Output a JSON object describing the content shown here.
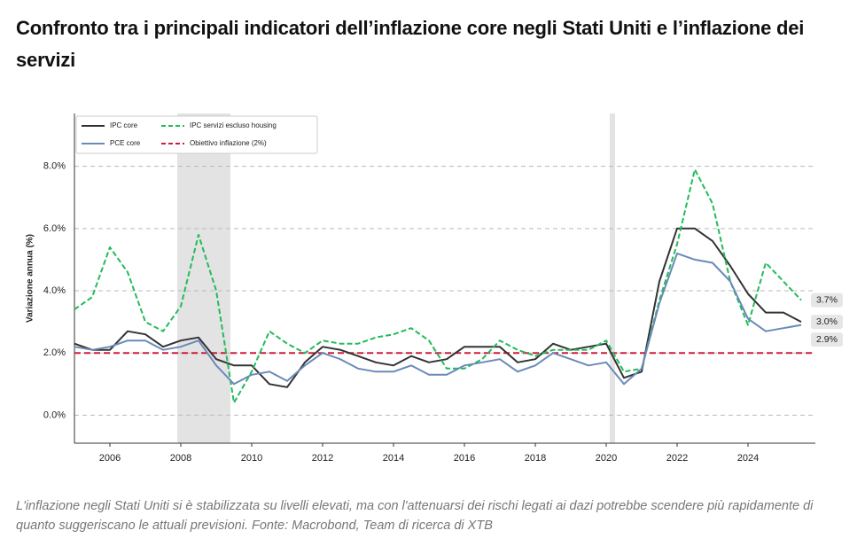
{
  "title": "Confronto tra i principali indicatori dell’inflazione core negli Stati Uniti e l’inflazione dei servizi",
  "caption": "L'inflazione negli Stati Uniti si è stabilizzata su livelli elevati, ma con l'attenuarsi dei rischi legati ai dazi potrebbe scendere più rapidamente di quanto suggeriscano le attuali previsioni. Fonte: Macrobond, Team di ricerca di XTB",
  "chart_data": {
    "type": "line",
    "y_label": "Variazione annua (%)",
    "x": [
      2005.0,
      2005.5,
      2006.0,
      2006.5,
      2007.0,
      2007.5,
      2008.0,
      2008.5,
      2009.0,
      2009.5,
      2010.0,
      2010.5,
      2011.0,
      2011.5,
      2012.0,
      2012.5,
      2013.0,
      2013.5,
      2014.0,
      2014.5,
      2015.0,
      2015.5,
      2016.0,
      2016.5,
      2017.0,
      2017.5,
      2018.0,
      2018.5,
      2019.0,
      2019.5,
      2020.0,
      2020.5,
      2021.0,
      2021.5,
      2022.0,
      2022.5,
      2023.0,
      2023.5,
      2024.0,
      2024.5,
      2025.0,
      2025.5
    ],
    "series": [
      {
        "name": "IPC core",
        "color": "#333333",
        "dash": false,
        "last_label": "3.0%",
        "values": [
          2.3,
          2.1,
          2.1,
          2.7,
          2.6,
          2.2,
          2.4,
          2.5,
          1.8,
          1.6,
          1.6,
          1.0,
          0.9,
          1.7,
          2.2,
          2.1,
          1.9,
          1.7,
          1.6,
          1.9,
          1.7,
          1.8,
          2.2,
          2.2,
          2.2,
          1.7,
          1.8,
          2.3,
          2.1,
          2.2,
          2.3,
          1.2,
          1.4,
          4.3,
          6.0,
          6.0,
          5.6,
          4.8,
          3.9,
          3.3,
          3.3,
          3.0
        ]
      },
      {
        "name": "IPC servizi escluso housing",
        "color": "#22bb5a",
        "dash": true,
        "last_label": "3.7%",
        "values": [
          3.4,
          3.8,
          5.4,
          4.6,
          3.0,
          2.7,
          3.5,
          5.8,
          4.0,
          0.4,
          1.4,
          2.7,
          2.3,
          2.0,
          2.4,
          2.3,
          2.3,
          2.5,
          2.6,
          2.8,
          2.4,
          1.5,
          1.5,
          1.8,
          2.4,
          2.1,
          1.9,
          2.1,
          2.1,
          2.1,
          2.4,
          1.4,
          1.5,
          3.7,
          5.5,
          7.9,
          6.8,
          4.3,
          2.9,
          4.9,
          4.3,
          3.7
        ]
      },
      {
        "name": "PCE core",
        "color": "#6a8ab8",
        "dash": false,
        "last_label": "2.9%",
        "values": [
          2.2,
          2.1,
          2.2,
          2.4,
          2.4,
          2.1,
          2.2,
          2.4,
          1.6,
          1.0,
          1.3,
          1.4,
          1.1,
          1.6,
          2.0,
          1.8,
          1.5,
          1.4,
          1.4,
          1.6,
          1.3,
          1.3,
          1.6,
          1.7,
          1.8,
          1.4,
          1.6,
          2.0,
          1.8,
          1.6,
          1.7,
          1.0,
          1.5,
          3.6,
          5.2,
          5.0,
          4.9,
          4.3,
          3.1,
          2.7,
          2.8,
          2.9
        ]
      }
    ],
    "target": {
      "name": "Obiettivo inflazione (2%)",
      "color": "#d01c3c",
      "value": 2
    },
    "shaded": [
      [
        2007.9,
        2009.4
      ],
      [
        2020.1,
        2020.25
      ]
    ],
    "shade_color": "#e3e3e3",
    "xlim": [
      2005.0,
      2025.9
    ],
    "xticks": [
      2006,
      2008,
      2010,
      2012,
      2014,
      2016,
      2018,
      2020,
      2022,
      2024
    ],
    "ylim": [
      -0.9,
      9.7
    ],
    "yticks": [
      {
        "value": 0,
        "label": "0.0%"
      },
      {
        "value": 2,
        "label": "2.0%"
      },
      {
        "value": 4,
        "label": "4.0%"
      },
      {
        "value": 6,
        "label": "6.0%"
      },
      {
        "value": 8,
        "label": "8.0%"
      }
    ],
    "grid": true,
    "legend": "upper left"
  }
}
